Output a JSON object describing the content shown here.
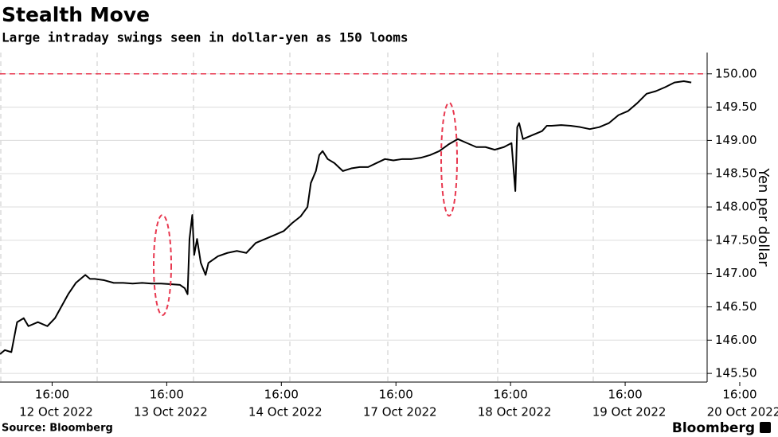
{
  "chart_data": {
    "type": "line",
    "title": "Stealth Move",
    "subtitle": "Large intraday swings seen in dollar-yen as 150 looms",
    "y_label": "Yen per dollar",
    "source": "Source: Bloomberg",
    "brand": "Bloomberg",
    "color": "#000000",
    "grid": true,
    "y_axis_side": "right",
    "hline": 150,
    "hline_color": "#e8384f",
    "xlim": [
      "2022-10-12T05:05",
      "2022-10-20T09:10"
    ],
    "xticks": [
      {
        "value": "2022-10-12T16:00",
        "label": "16:00"
      },
      {
        "value": "2022-10-13T16:00",
        "label": "16:00"
      },
      {
        "value": "2022-10-14T16:00",
        "label": "16:00"
      },
      {
        "value": "2022-10-17T16:00",
        "label": "16:00"
      },
      {
        "value": "2022-10-18T16:00",
        "label": "16:00"
      },
      {
        "value": "2022-10-19T16:00",
        "label": "16:00"
      },
      {
        "value": "2022-10-20T16:00",
        "label": "16:00"
      }
    ],
    "xtick_dates": [
      "12 Oct 2022",
      "13 Oct 2022",
      "14 Oct 2022",
      "17 Oct 2022",
      "18 Oct 2022",
      "19 Oct 2022",
      "20 Oct 2022"
    ],
    "ylim": [
      145.37,
      150.32
    ],
    "yticks": [
      {
        "value": 145.5,
        "label": "145.50"
      },
      {
        "value": 146,
        "label": "146.00"
      },
      {
        "value": 146.5,
        "label": "146.50"
      },
      {
        "value": 147,
        "label": "147.00"
      },
      {
        "value": 147.5,
        "label": "147.50"
      },
      {
        "value": 148,
        "label": "148.00"
      },
      {
        "value": 148.5,
        "label": "148.50"
      },
      {
        "value": 149,
        "label": "149.00"
      },
      {
        "value": 149.5,
        "label": "149.50"
      },
      {
        "value": 150,
        "label": "150.00"
      }
    ],
    "x": [
      "2022-10-12T05:05",
      "2022-10-12T06:05",
      "2022-10-12T07:28",
      "2022-10-12T08:40",
      "2022-10-12T10:03",
      "2022-10-12T11:02",
      "2022-10-12T13:01",
      "2022-10-12T15:00",
      "2022-10-12T16:36",
      "2022-10-12T17:59",
      "2022-10-12T19:22",
      "2022-10-12T20:58",
      "2022-10-12T22:57",
      "2022-10-12T23:56",
      "2022-10-13T00:56",
      "2022-10-13T02:54",
      "2022-10-13T04:54",
      "2022-10-13T06:53",
      "2022-10-13T08:52",
      "2022-10-13T10:51",
      "2022-10-13T12:50",
      "2022-10-13T14:49",
      "2022-10-13T16:48",
      "2022-10-13T18:47",
      "2022-10-13T19:46",
      "2022-10-13T20:22",
      "2022-10-13T20:46",
      "2022-10-13T21:21",
      "2022-10-13T21:45",
      "2022-10-13T22:21",
      "2022-10-13T23:08",
      "2022-10-14T00:08",
      "2022-10-14T00:44",
      "2022-10-14T02:43",
      "2022-10-14T04:42",
      "2022-10-14T06:41",
      "2022-10-14T08:40",
      "2022-10-14T10:39",
      "2022-10-14T12:38",
      "2022-10-14T14:37",
      "2022-10-14T17:35",
      "2022-10-14T22:53",
      "2022-10-15T04:10",
      "2022-10-15T08:25",
      "2022-10-15T10:32",
      "2022-10-15T13:42",
      "2022-10-15T15:49",
      "2022-10-15T17:56",
      "2022-10-15T21:07",
      "2022-10-16T01:21",
      "2022-10-16T06:38",
      "2022-10-16T11:56",
      "2022-10-16T17:14",
      "2022-10-16T22:31",
      "2022-10-17T03:49",
      "2022-10-17T09:06",
      "2022-10-17T14:24",
      "2022-10-17T17:21",
      "2022-10-17T19:17",
      "2022-10-17T21:13",
      "2022-10-17T23:09",
      "2022-10-18T01:05",
      "2022-10-18T03:01",
      "2022-10-18T04:57",
      "2022-10-18T06:53",
      "2022-10-18T08:49",
      "2022-10-18T10:45",
      "2022-10-18T12:41",
      "2022-10-18T14:37",
      "2022-10-18T16:12",
      "2022-10-18T17:00",
      "2022-10-18T17:24",
      "2022-10-18T17:48",
      "2022-10-18T18:36",
      "2022-10-18T20:36",
      "2022-10-18T22:36",
      "2022-10-18T23:36",
      "2022-10-19T00:36",
      "2022-10-19T02:36",
      "2022-10-19T04:36",
      "2022-10-19T06:36",
      "2022-10-19T08:36",
      "2022-10-19T10:36",
      "2022-10-19T12:36",
      "2022-10-19T14:36",
      "2022-10-19T16:35",
      "2022-10-19T18:32",
      "2022-10-19T20:29",
      "2022-10-19T22:26",
      "2022-10-20T00:23",
      "2022-10-20T02:20",
      "2022-10-20T04:17",
      "2022-10-20T05:51"
    ],
    "values": [
      145.79,
      145.85,
      145.82,
      146.27,
      146.33,
      146.21,
      146.27,
      146.21,
      146.33,
      146.51,
      146.69,
      146.86,
      146.98,
      146.92,
      146.92,
      146.9,
      146.86,
      146.86,
      146.85,
      146.86,
      146.85,
      146.85,
      146.84,
      146.83,
      146.78,
      146.69,
      147.52,
      147.88,
      147.28,
      147.52,
      147.16,
      146.98,
      147.16,
      147.26,
      147.31,
      147.34,
      147.31,
      147.46,
      147.52,
      147.58,
      147.64,
      147.76,
      147.86,
      148.0,
      148.36,
      148.54,
      148.78,
      148.84,
      148.72,
      148.66,
      148.54,
      148.58,
      148.6,
      148.6,
      148.66,
      148.72,
      148.7,
      148.72,
      148.72,
      148.74,
      148.78,
      148.84,
      148.94,
      149.02,
      148.96,
      148.9,
      148.9,
      148.86,
      148.9,
      148.96,
      148.24,
      149.2,
      149.26,
      149.02,
      149.08,
      149.14,
      149.22,
      149.22,
      149.23,
      149.22,
      149.2,
      149.17,
      149.2,
      149.26,
      149.38,
      149.44,
      149.56,
      149.7,
      149.74,
      149.8,
      149.87,
      149.89,
      149.87
    ]
  }
}
